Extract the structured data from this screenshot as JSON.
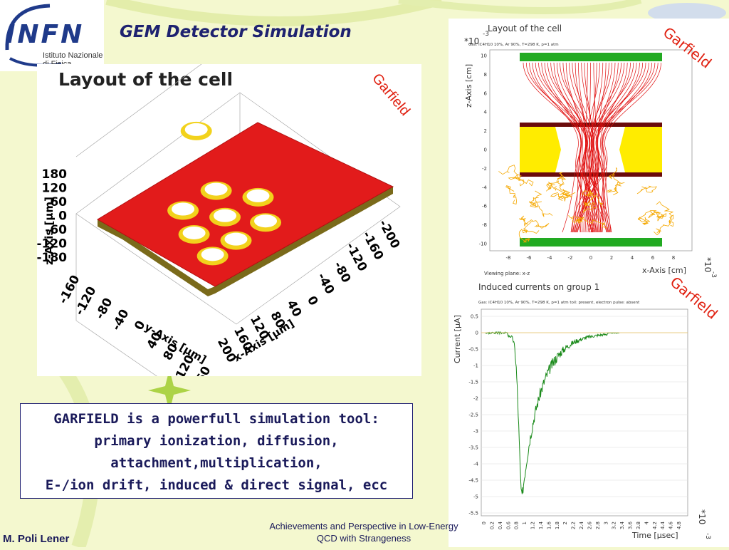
{
  "logo": {
    "text": "INFN",
    "subtitle_line1": "Istituto Nazionale",
    "subtitle_line2": "di Fisica Nucleare"
  },
  "slide_title": "GEM Detector Simulation",
  "left_figure": {
    "title": "Layout of the cell",
    "z_axis_label": "z-Axis [μm]",
    "z_ticks": [
      "180",
      "120",
      "60",
      "0",
      "-60",
      "-120",
      "-180"
    ],
    "y_axis_label": "y-Axis [μm]",
    "y_ticks": [
      "-160",
      "-120",
      "-80",
      "-40",
      "0",
      "40",
      "80",
      "120",
      "160"
    ],
    "x_axis_label": "x-Axis [μm]",
    "x_ticks": [
      "200",
      "160",
      "120",
      "80",
      "40",
      "0",
      "-40",
      "-80",
      "-120",
      "-160",
      "-200"
    ],
    "stamp": "Garfield"
  },
  "right_top_figure": {
    "title": "Layout of the cell",
    "gas": "Gas: iC4H10 10%, Ar 90%, T=298 K, p=1 atm",
    "y_axis_label": "z-Axis [cm]",
    "y_scale": "*10",
    "y_exp": "-3",
    "y_ticks": [
      "10",
      "8",
      "6",
      "4",
      "2",
      "0",
      "-2",
      "-4",
      "-6",
      "-8",
      "-10"
    ],
    "x_ticks": [
      "-8",
      "-6",
      "-4",
      "-2",
      "0",
      "2",
      "4",
      "6",
      "8"
    ],
    "x_axis_label": "x-Axis [cm]",
    "x_scale": "*10",
    "x_exp": "-3",
    "viewing_plane": "Viewing plane: x-z",
    "stamp": "Garfield"
  },
  "right_bottom_figure": {
    "title": "Induced currents on group 1",
    "gas": "Gas: iC4H10 10%, Ar 90%, T=298 K, p=1 atm toil: present, electron pulse: absent",
    "y_axis_label": "Current [μA]",
    "y_ticks": [
      "0.5",
      "0",
      "-0.5",
      "-1",
      "-1.5",
      "-2",
      "-2.5",
      "-3",
      "-3.5",
      "-4",
      "-4.5",
      "-5",
      "-5.5"
    ],
    "x_ticks": [
      "0",
      "0.2",
      "0.4",
      "0.6",
      "0.8",
      "1",
      "1.2",
      "1.4",
      "1.6",
      "1.8",
      "2",
      "2.2",
      "2.4",
      "2.6",
      "2.8",
      "3",
      "3.2",
      "3.4",
      "3.6",
      "3.8",
      "4",
      "4.2",
      "4.4",
      "4.6",
      "4.8"
    ],
    "x_axis_label": "Time [μsec]",
    "x_scale": "*10",
    "x_exp": "-3",
    "stamp": "Garfield"
  },
  "caption": {
    "line1": "GARFIELD is a powerfull simulation tool:",
    "line2": "primary ionization, diffusion,",
    "line3": "attachment,multiplication,",
    "line4": "E-/ion drift, induced & direct signal, ecc"
  },
  "footer": {
    "author": "M. Poli Lener",
    "line1": "Achievements and Perspective in Low-Energy",
    "line2": "QCD with Strangeness"
  },
  "colors": {
    "title": "#1e2270",
    "stamp": "#e02010",
    "background": "#f4f8cf"
  }
}
